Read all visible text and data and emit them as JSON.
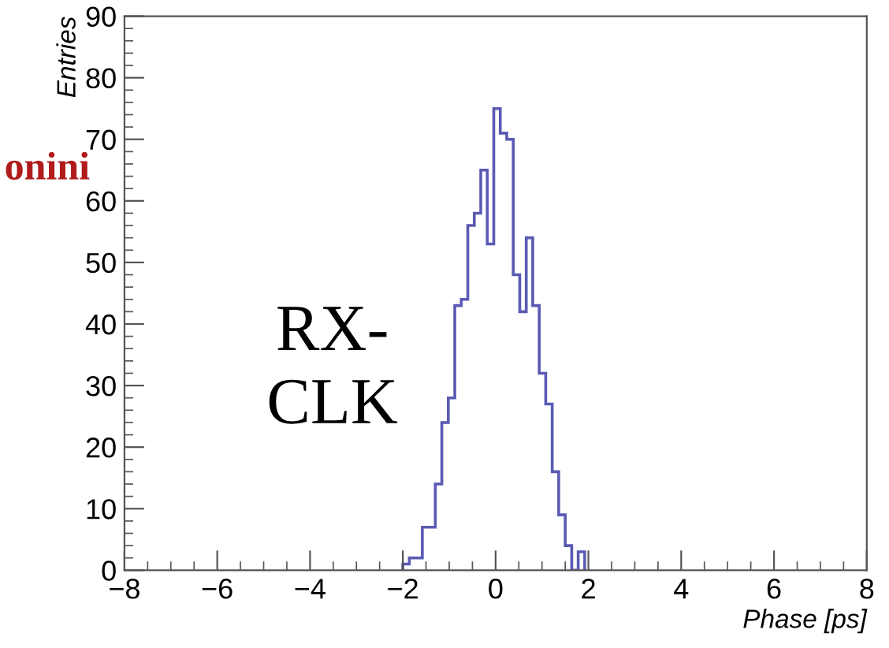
{
  "chart_data": {
    "type": "histogram",
    "xlabel": "Phase [ps]",
    "ylabel": "Entries",
    "bins": [
      -2.0,
      -1.86,
      -1.72,
      -1.58,
      -1.44,
      -1.3,
      -1.16,
      -1.02,
      -0.88,
      -0.74,
      -0.6,
      -0.46,
      -0.32,
      -0.18,
      -0.04,
      0.1,
      0.24,
      0.38,
      0.52,
      0.66,
      0.8,
      0.94,
      1.08,
      1.22,
      1.36,
      1.5,
      1.64,
      1.78,
      1.92
    ],
    "values": [
      1,
      2,
      2,
      7,
      7,
      14,
      24,
      28,
      43,
      44,
      56,
      58,
      65,
      53,
      75,
      71,
      70,
      48,
      42,
      54,
      43,
      32,
      27,
      16,
      9,
      4,
      0,
      3
    ],
    "color": "#5a5ab4",
    "xlim": [
      -8,
      8
    ],
    "xticks": [
      -8,
      -6,
      -4,
      -2,
      0,
      2,
      4,
      6,
      8
    ],
    "ylim": [
      0,
      90
    ],
    "yticks": [
      0,
      10,
      20,
      30,
      40,
      50,
      60,
      70,
      80,
      90
    ],
    "grid": false,
    "legend": false,
    "annotations": [
      "RX-\nCLK",
      "onini"
    ]
  }
}
